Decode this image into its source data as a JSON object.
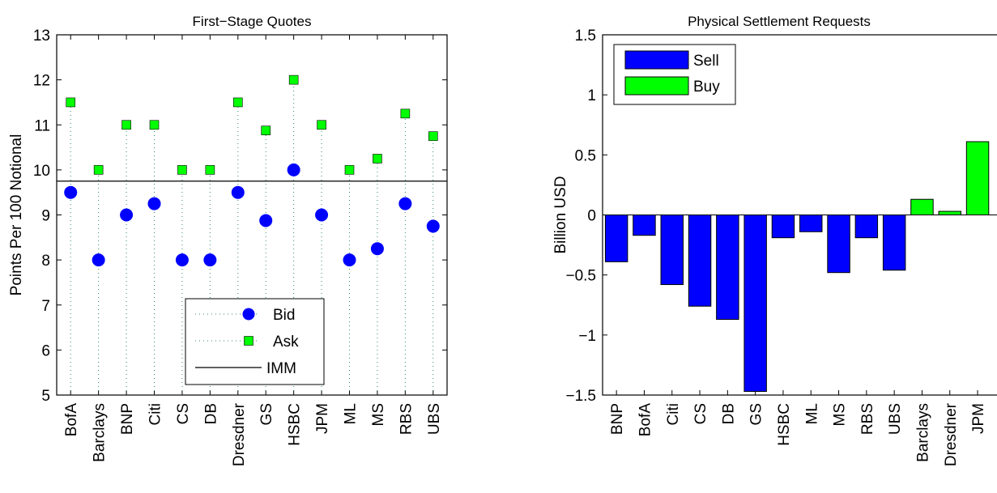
{
  "chart_data": [
    {
      "type": "scatter",
      "title": "First−Stage Quotes",
      "ylabel": "Points Per 100 Notional",
      "xlabel": "",
      "ylim": [
        5,
        13
      ],
      "yticks": [
        5,
        6,
        7,
        8,
        9,
        10,
        11,
        12,
        13
      ],
      "categories": [
        "BofA",
        "Barclays",
        "BNP",
        "Citi",
        "CS",
        "DB",
        "Dresdner",
        "GS",
        "HSBC",
        "JPM",
        "ML",
        "MS",
        "RBS",
        "UBS"
      ],
      "series": [
        {
          "name": "Bid",
          "values": [
            9.5,
            8.0,
            9.0,
            9.25,
            8.0,
            8.0,
            9.5,
            8.875,
            10.0,
            9.0,
            8.0,
            8.25,
            9.25,
            8.75
          ],
          "color": "#0000ff",
          "marker": "circle"
        },
        {
          "name": "Ask",
          "values": [
            11.5,
            10.0,
            11.0,
            11.0,
            10.0,
            10.0,
            11.5,
            10.875,
            12.0,
            11.0,
            10.0,
            10.25,
            11.25,
            10.75
          ],
          "color": "#00ff00",
          "marker": "square"
        }
      ],
      "reference_line": {
        "name": "IMM",
        "value": 9.75
      },
      "legend": {
        "position": "bottom-right",
        "entries": [
          "Bid",
          "Ask",
          "IMM"
        ]
      },
      "grid": false
    },
    {
      "type": "bar",
      "title": "Physical Settlement Requests",
      "ylabel": "Billion USD",
      "xlabel": "",
      "ylim": [
        -1.5,
        1.5
      ],
      "yticks": [
        -1.5,
        -1,
        -0.5,
        0,
        0.5,
        1,
        1.5
      ],
      "ytick_labels": [
        "−1.5",
        "−1",
        "−0.5",
        "0",
        "0.5",
        "1",
        "1.5"
      ],
      "categories": [
        "BNP",
        "BofA",
        "Citi",
        "CS",
        "DB",
        "GS",
        "HSBC",
        "ML",
        "MS",
        "RBS",
        "UBS",
        "Barclays",
        "Dresdner",
        "JPM"
      ],
      "values": [
        -0.39,
        -0.17,
        -0.58,
        -0.76,
        -0.87,
        -1.47,
        -0.19,
        -0.14,
        -0.48,
        -0.19,
        -0.46,
        0.13,
        0.03,
        0.61
      ],
      "series": [
        {
          "name": "Sell",
          "color": "#0000ff"
        },
        {
          "name": "Buy",
          "color": "#00ff00"
        }
      ],
      "legend": {
        "position": "top-left",
        "entries": [
          "Sell",
          "Buy"
        ]
      },
      "grid": false
    }
  ]
}
